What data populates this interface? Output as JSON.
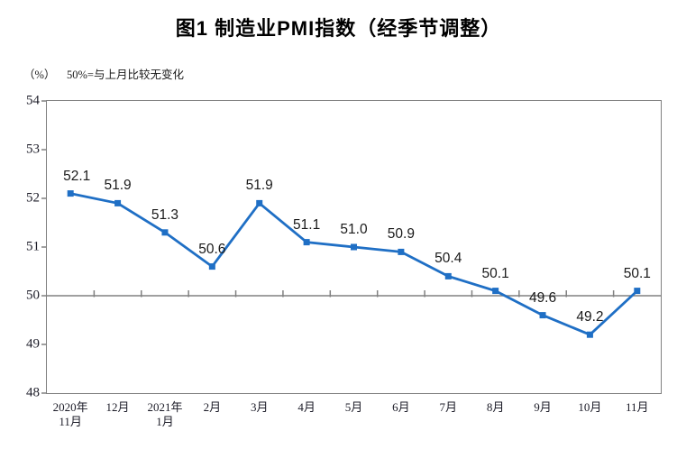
{
  "title": "图1 制造业PMI指数（经季节调整）",
  "unit_label": "（%）",
  "reference_note": "50%=与上月比较无变化",
  "colors": {
    "line": "#1f6fc5",
    "axis": "#808080",
    "label_text": "#1a1a1a"
  },
  "chart_data": {
    "type": "line",
    "title": "图1 制造业PMI指数（经季节调整）",
    "ylabel": "（%）",
    "annotation": "50%=与上月比较无变化",
    "categories": [
      [
        "2020年",
        "11月"
      ],
      [
        "12月"
      ],
      [
        "2021年",
        "1月"
      ],
      [
        "2月"
      ],
      [
        "3月"
      ],
      [
        "4月"
      ],
      [
        "5月"
      ],
      [
        "6月"
      ],
      [
        "7月"
      ],
      [
        "8月"
      ],
      [
        "9月"
      ],
      [
        "10月"
      ],
      [
        "11月"
      ]
    ],
    "series": [
      {
        "name": "制造业PMI指数",
        "values": [
          52.1,
          51.9,
          51.3,
          50.6,
          51.9,
          51.1,
          51.0,
          50.9,
          50.4,
          50.1,
          49.6,
          49.2,
          50.1
        ],
        "point_labels": [
          "52.1",
          "51.9",
          "51.3",
          "50.6",
          "51.9",
          "51.1",
          "51.0",
          "50.9",
          "50.4",
          "50.1",
          "49.6",
          "49.2",
          "50.1"
        ]
      }
    ],
    "ylim": [
      48,
      54
    ],
    "ytick_step": 1,
    "ytick_labels": [
      "48",
      "49",
      "50",
      "51",
      "52",
      "53",
      "54"
    ],
    "reference_line_y": 50,
    "grid": false,
    "legend_position": "none",
    "marker": "square"
  }
}
